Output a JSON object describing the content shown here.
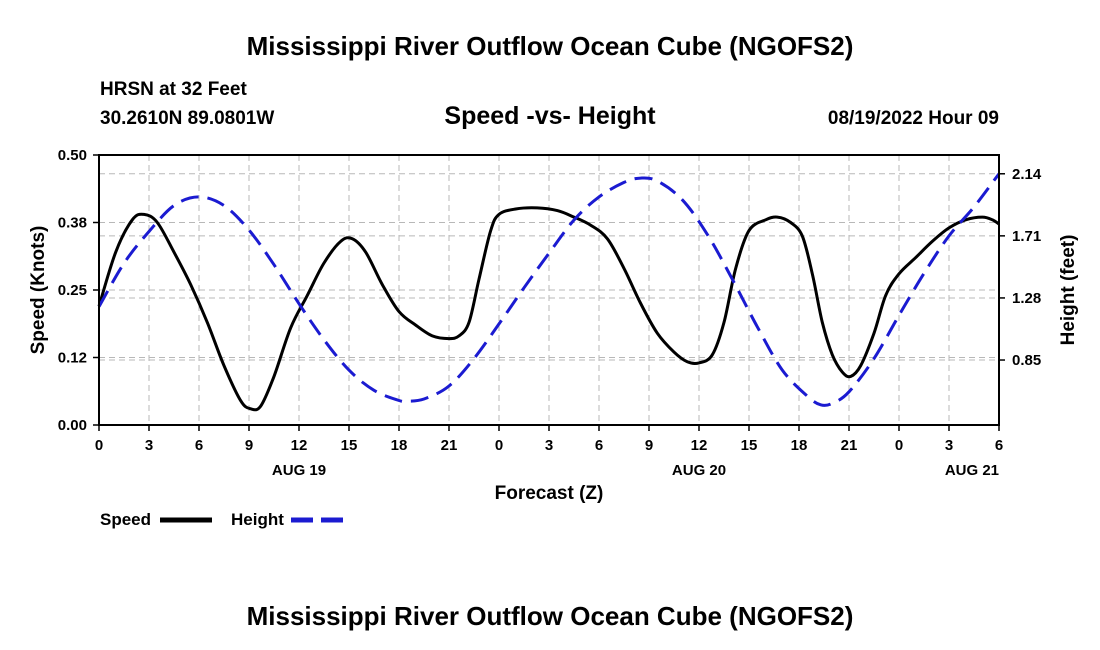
{
  "page": {
    "title": "Mississippi River Outflow Ocean Cube (NGOFS2)",
    "footer_title": "Mississippi River Outflow Ocean Cube (NGOFS2)"
  },
  "info": {
    "station": "HRSN at 32 Feet",
    "coords": "30.2610N  89.0801W",
    "datetime": "08/19/2022 Hour 09"
  },
  "chart_data": {
    "type": "line",
    "title": "Speed -vs- Height",
    "xlabel": "Forecast (Z)",
    "ylabel_left": "Speed (Knots)",
    "ylabel_right": "Height (feet)",
    "x_range_hours": [
      0,
      54
    ],
    "x_ticks": [
      {
        "h": 0,
        "label": "0"
      },
      {
        "h": 3,
        "label": "3"
      },
      {
        "h": 6,
        "label": "6"
      },
      {
        "h": 9,
        "label": "9"
      },
      {
        "h": 12,
        "label": "12"
      },
      {
        "h": 15,
        "label": "15"
      },
      {
        "h": 18,
        "label": "18"
      },
      {
        "h": 21,
        "label": "21"
      },
      {
        "h": 24,
        "label": "0"
      },
      {
        "h": 27,
        "label": "3"
      },
      {
        "h": 30,
        "label": "6"
      },
      {
        "h": 33,
        "label": "9"
      },
      {
        "h": 36,
        "label": "12"
      },
      {
        "h": 39,
        "label": "15"
      },
      {
        "h": 42,
        "label": "18"
      },
      {
        "h": 45,
        "label": "21"
      },
      {
        "h": 48,
        "label": "0"
      },
      {
        "h": 51,
        "label": "3"
      },
      {
        "h": 54,
        "label": "6"
      }
    ],
    "day_labels": [
      {
        "h": 12,
        "label": "AUG 19"
      },
      {
        "h": 36,
        "label": "AUG 20"
      },
      {
        "h": 54,
        "label": "AUG 21"
      }
    ],
    "y_left_range": [
      0,
      0.5
    ],
    "y_left_ticks": [
      {
        "v": 0.0,
        "label": "0.00"
      },
      {
        "v": 0.125,
        "label": "0.12"
      },
      {
        "v": 0.25,
        "label": "0.25"
      },
      {
        "v": 0.375,
        "label": "0.38"
      },
      {
        "v": 0.5,
        "label": "0.50"
      }
    ],
    "y_right_range": [
      0.4,
      2.27
    ],
    "y_right_ticks": [
      {
        "v": 0.85,
        "label": "0.85"
      },
      {
        "v": 1.28,
        "label": "1.28"
      },
      {
        "v": 1.71,
        "label": "1.71"
      },
      {
        "v": 2.14,
        "label": "2.14"
      }
    ],
    "grid": true,
    "series": [
      {
        "name": "Speed",
        "axis": "left",
        "color": "#000000",
        "dash": "solid",
        "points": [
          [
            0,
            0.22
          ],
          [
            1,
            0.32
          ],
          [
            2,
            0.38
          ],
          [
            2.7,
            0.39
          ],
          [
            3.5,
            0.375
          ],
          [
            4.5,
            0.32
          ],
          [
            5.5,
            0.26
          ],
          [
            6.5,
            0.19
          ],
          [
            7.5,
            0.11
          ],
          [
            8.5,
            0.045
          ],
          [
            9.1,
            0.03
          ],
          [
            9.7,
            0.035
          ],
          [
            10.5,
            0.09
          ],
          [
            11.5,
            0.18
          ],
          [
            12.5,
            0.24
          ],
          [
            13.5,
            0.3
          ],
          [
            14.5,
            0.34
          ],
          [
            15.2,
            0.345
          ],
          [
            16,
            0.32
          ],
          [
            17,
            0.26
          ],
          [
            18,
            0.21
          ],
          [
            19,
            0.185
          ],
          [
            20,
            0.165
          ],
          [
            21,
            0.16
          ],
          [
            21.6,
            0.165
          ],
          [
            22.2,
            0.19
          ],
          [
            22.8,
            0.27
          ],
          [
            23.5,
            0.36
          ],
          [
            24,
            0.39
          ],
          [
            25,
            0.4
          ],
          [
            26.3,
            0.402
          ],
          [
            27.5,
            0.397
          ],
          [
            28.5,
            0.385
          ],
          [
            29.5,
            0.37
          ],
          [
            30.5,
            0.345
          ],
          [
            31.5,
            0.29
          ],
          [
            32.5,
            0.225
          ],
          [
            33.5,
            0.17
          ],
          [
            34.5,
            0.135
          ],
          [
            35.3,
            0.117
          ],
          [
            36,
            0.115
          ],
          [
            36.8,
            0.13
          ],
          [
            37.5,
            0.19
          ],
          [
            38.2,
            0.29
          ],
          [
            39,
            0.36
          ],
          [
            40,
            0.38
          ],
          [
            40.7,
            0.385
          ],
          [
            41.5,
            0.375
          ],
          [
            42.2,
            0.35
          ],
          [
            42.8,
            0.28
          ],
          [
            43.4,
            0.19
          ],
          [
            44,
            0.13
          ],
          [
            44.6,
            0.098
          ],
          [
            45.1,
            0.09
          ],
          [
            45.7,
            0.11
          ],
          [
            46.5,
            0.17
          ],
          [
            47.2,
            0.24
          ],
          [
            48,
            0.28
          ],
          [
            49,
            0.31
          ],
          [
            50,
            0.34
          ],
          [
            51,
            0.365
          ],
          [
            52,
            0.38
          ],
          [
            53,
            0.385
          ],
          [
            53.6,
            0.38
          ],
          [
            54,
            0.372
          ]
        ]
      },
      {
        "name": "Height",
        "axis": "right",
        "color": "#1b1bd1",
        "dash": "dashed",
        "points": [
          [
            0,
            1.22
          ],
          [
            1.5,
            1.52
          ],
          [
            3,
            1.74
          ],
          [
            4.5,
            1.92
          ],
          [
            6,
            1.98
          ],
          [
            7.5,
            1.92
          ],
          [
            9,
            1.75
          ],
          [
            10.5,
            1.51
          ],
          [
            12,
            1.24
          ],
          [
            13.5,
            0.99
          ],
          [
            15,
            0.78
          ],
          [
            16.5,
            0.64
          ],
          [
            18,
            0.57
          ],
          [
            18.5,
            0.565
          ],
          [
            19.5,
            0.58
          ],
          [
            21,
            0.67
          ],
          [
            22.5,
            0.86
          ],
          [
            24,
            1.1
          ],
          [
            25.5,
            1.35
          ],
          [
            27,
            1.59
          ],
          [
            28.5,
            1.82
          ],
          [
            30,
            1.98
          ],
          [
            31.5,
            2.08
          ],
          [
            32.5,
            2.11
          ],
          [
            33.5,
            2.09
          ],
          [
            35,
            1.96
          ],
          [
            36.5,
            1.72
          ],
          [
            38,
            1.41
          ],
          [
            39.5,
            1.08
          ],
          [
            41,
            0.78
          ],
          [
            42.5,
            0.6
          ],
          [
            43.3,
            0.54
          ],
          [
            44,
            0.55
          ],
          [
            45,
            0.63
          ],
          [
            46.5,
            0.86
          ],
          [
            48,
            1.16
          ],
          [
            49.5,
            1.45
          ],
          [
            51,
            1.71
          ],
          [
            52.5,
            1.91
          ],
          [
            54,
            2.14
          ]
        ]
      }
    ]
  },
  "legend": {
    "speed_label": "Speed",
    "height_label": "Height",
    "speed_color": "#000000",
    "height_color": "#1b1bd1"
  }
}
